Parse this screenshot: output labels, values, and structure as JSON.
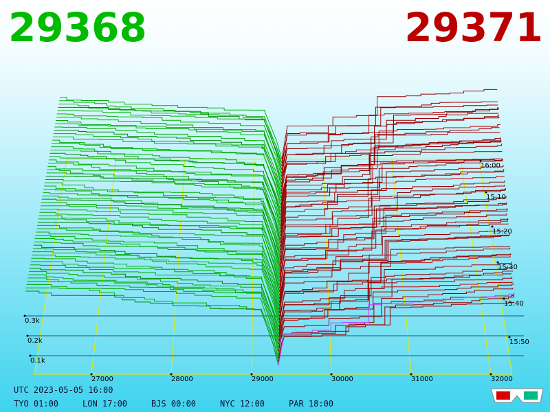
{
  "header": {
    "bid": "29368",
    "ask": "29371"
  },
  "price_axis": [
    "27000",
    "28000",
    "29000",
    "30000",
    "31000",
    "32000"
  ],
  "time_axis": [
    "16:00",
    "15:10",
    "15:20",
    "15:30",
    "15:40",
    "15:50"
  ],
  "volume_axis": [
    "0.3k",
    "0.2k",
    "0.1k"
  ],
  "footer": {
    "utc": "UTC 2023-05-05 16:00",
    "clocks": [
      "TYO 01:00",
      "LON 17:00",
      "BJS 00:00",
      "NYC 12:00",
      "PAR 18:00"
    ]
  }
}
